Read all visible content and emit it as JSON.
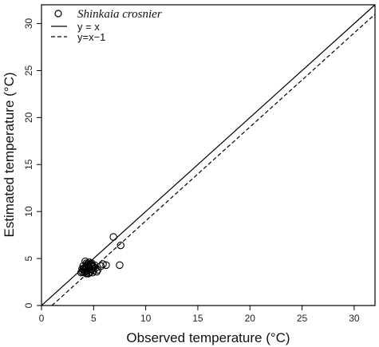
{
  "chart_data": {
    "type": "scatter",
    "xlabel": "Observed temperature (°C)",
    "ylabel": "Estimated temperature (°C)",
    "xlim": [
      0,
      32
    ],
    "ylim": [
      0,
      32
    ],
    "x_ticks": [
      0,
      5,
      10,
      15,
      20,
      25,
      30
    ],
    "y_ticks": [
      0,
      5,
      10,
      15,
      20,
      25,
      30
    ],
    "grid": false,
    "legend_position": "top-left",
    "legend": [
      {
        "label": "Shinkaia crosnier",
        "marker": "open-circle"
      },
      {
        "label": "y = x",
        "line": "solid"
      },
      {
        "label": "y=x−1",
        "line": "dashed"
      }
    ],
    "series": [
      {
        "name": "Shinkaia crosnier",
        "marker": "open-circle",
        "points": [
          {
            "x": 6.9,
            "y": 7.3
          },
          {
            "x": 7.6,
            "y": 6.4
          },
          {
            "x": 7.5,
            "y": 4.3
          },
          {
            "x": 6.2,
            "y": 4.3
          },
          {
            "x": 5.7,
            "y": 4.2
          },
          {
            "x": 5.9,
            "y": 4.4
          },
          {
            "x": 5.1,
            "y": 4.3
          },
          {
            "x": 5.0,
            "y": 4.1
          },
          {
            "x": 4.9,
            "y": 4.3
          },
          {
            "x": 4.8,
            "y": 4.2
          },
          {
            "x": 4.7,
            "y": 4.4
          },
          {
            "x": 4.6,
            "y": 4.0
          },
          {
            "x": 4.5,
            "y": 4.2
          },
          {
            "x": 4.4,
            "y": 4.3
          },
          {
            "x": 4.3,
            "y": 4.1
          },
          {
            "x": 4.2,
            "y": 3.9
          },
          {
            "x": 4.1,
            "y": 4.0
          },
          {
            "x": 4.0,
            "y": 3.8
          },
          {
            "x": 3.9,
            "y": 3.6
          },
          {
            "x": 3.8,
            "y": 3.5
          },
          {
            "x": 4.2,
            "y": 3.6
          },
          {
            "x": 4.4,
            "y": 3.7
          },
          {
            "x": 4.6,
            "y": 3.5
          },
          {
            "x": 4.8,
            "y": 3.8
          },
          {
            "x": 5.0,
            "y": 3.7
          },
          {
            "x": 5.3,
            "y": 3.6
          },
          {
            "x": 5.4,
            "y": 3.8
          },
          {
            "x": 4.3,
            "y": 3.4
          },
          {
            "x": 4.5,
            "y": 3.9
          },
          {
            "x": 4.7,
            "y": 3.6
          },
          {
            "x": 4.1,
            "y": 3.5
          },
          {
            "x": 4.9,
            "y": 3.9
          },
          {
            "x": 5.2,
            "y": 4.0
          },
          {
            "x": 4.0,
            "y": 4.2
          },
          {
            "x": 4.3,
            "y": 4.5
          },
          {
            "x": 4.6,
            "y": 4.6
          },
          {
            "x": 4.2,
            "y": 4.7
          },
          {
            "x": 4.4,
            "y": 4.4
          },
          {
            "x": 4.8,
            "y": 4.5
          },
          {
            "x": 3.9,
            "y": 3.9
          },
          {
            "x": 4.5,
            "y": 3.4
          },
          {
            "x": 4.9,
            "y": 3.5
          }
        ]
      }
    ],
    "reference_lines": [
      {
        "name": "y = x",
        "slope": 1,
        "intercept": 0,
        "style": "solid"
      },
      {
        "name": "y=x−1",
        "slope": 1,
        "intercept": -1,
        "style": "dashed"
      }
    ]
  }
}
